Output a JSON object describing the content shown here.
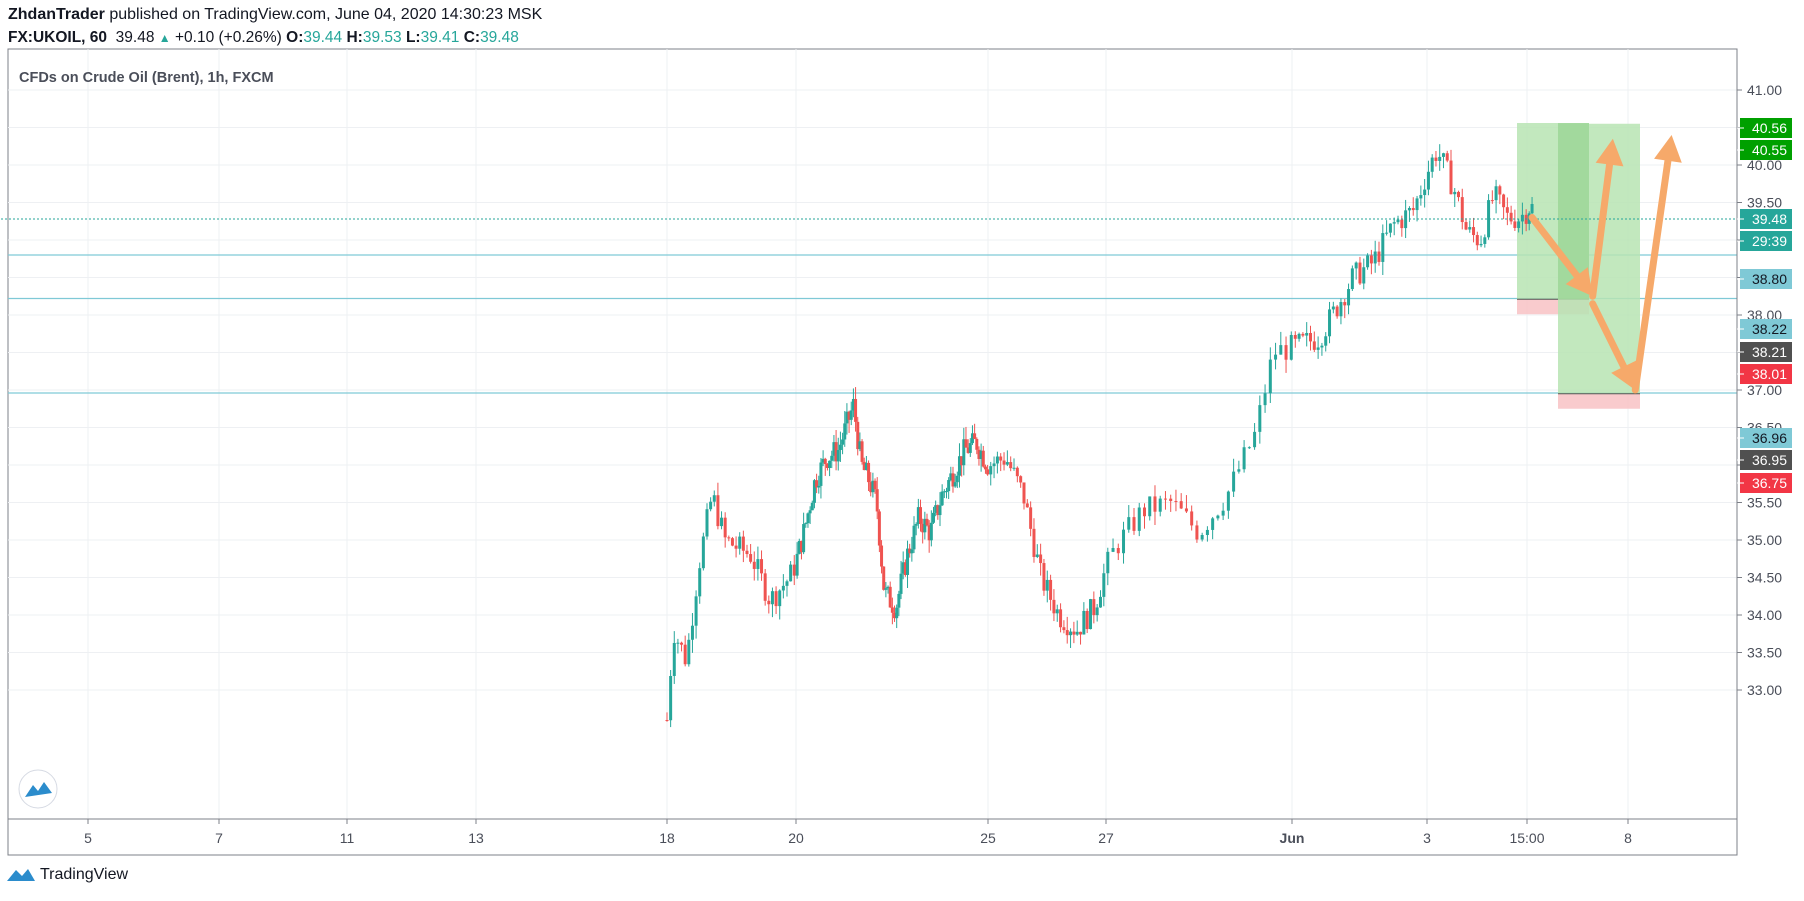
{
  "header": {
    "author": "ZhdanTrader",
    "published_text": " published on TradingView.com, June 04, 2020 14:30:23 MSK",
    "symbol": "FX:UKOIL, 60",
    "last": "39.48",
    "change": "+0.10 (+0.26%)",
    "o_label": "O:",
    "o_value": "39.44",
    "h_label": "H:",
    "h_value": "39.53",
    "l_label": "L:",
    "l_value": "39.41",
    "c_label": "C:",
    "c_value": "39.48"
  },
  "footer": {
    "brand": "TradingView",
    "logo_icon": "tradingview-cloud-icon"
  },
  "colors": {
    "up": "#26a69a",
    "down": "#ef5350",
    "arrow": "#f6a96a",
    "target_fill": "#b7e4b3",
    "target_dark": "#8fd08a",
    "stop_fill": "#f8c5c8",
    "hline": "#7fc9d6",
    "grid": "#eef0f3"
  },
  "chart_data": {
    "type": "candlestick",
    "title": "CFDs on Crude Oil (Brent), 1h, FXCM",
    "x_tick_labels": [
      "5",
      "7",
      "11",
      "13",
      "18",
      "20",
      "25",
      "27",
      "Jun",
      "3",
      "15:00",
      "8"
    ],
    "y_ticks": [
      33.0,
      33.5,
      34.0,
      34.5,
      35.0,
      35.5,
      36.0,
      36.5,
      37.0,
      37.5,
      38.0,
      38.5,
      39.0,
      39.5,
      40.0,
      40.5,
      41.0
    ],
    "y_tick_labels": [
      "33.00",
      "33.50",
      "34.00",
      "34.50",
      "35.00",
      "35.50",
      "36.00",
      "36.50",
      "37.00",
      "37.50",
      "38.00",
      "38.50",
      "39.00",
      "39.50",
      "40.00",
      "40.50",
      "41.00"
    ],
    "ylim": [
      32.55,
      41.5
    ],
    "price_path": [
      [
        18.0,
        32.6
      ],
      [
        18.1,
        33.8
      ],
      [
        18.3,
        33.4
      ],
      [
        18.5,
        34.7
      ],
      [
        18.7,
        35.6
      ],
      [
        18.9,
        35.0
      ],
      [
        19.3,
        34.8
      ],
      [
        19.6,
        34.2
      ],
      [
        19.9,
        34.5
      ],
      [
        20.2,
        35.1
      ],
      [
        20.5,
        35.8
      ],
      [
        20.8,
        36.1
      ],
      [
        21.1,
        36.2
      ],
      [
        21.3,
        36.5
      ],
      [
        21.5,
        36.8
      ],
      [
        21.7,
        36.0
      ],
      [
        21.9,
        35.8
      ],
      [
        22.1,
        35.5
      ],
      [
        22.3,
        34.3
      ],
      [
        22.6,
        34.1
      ],
      [
        22.9,
        34.8
      ],
      [
        23.2,
        35.3
      ],
      [
        23.5,
        35.1
      ],
      [
        23.8,
        35.6
      ],
      [
        24.1,
        35.9
      ],
      [
        24.4,
        36.2
      ],
      [
        24.7,
        36.3
      ],
      [
        25.0,
        36.0
      ],
      [
        25.3,
        36.1
      ],
      [
        25.6,
        35.6
      ],
      [
        25.9,
        34.5
      ],
      [
        26.2,
        34.0
      ],
      [
        26.5,
        33.8
      ],
      [
        26.8,
        34.1
      ],
      [
        27.1,
        34.9
      ],
      [
        27.4,
        35.4
      ],
      [
        27.7,
        35.5
      ],
      [
        28.0,
        35.1
      ],
      [
        28.3,
        35.6
      ],
      [
        28.6,
        36.4
      ],
      [
        28.8,
        37.5
      ],
      [
        29.1,
        37.6
      ],
      [
        29.4,
        37.7
      ],
      [
        29.6,
        38.0
      ],
      [
        29.9,
        38.5
      ],
      [
        30.2,
        38.7
      ],
      [
        30.5,
        39.2
      ],
      [
        30.8,
        39.4
      ],
      [
        31.0,
        39.9
      ],
      [
        31.15,
        40.2
      ],
      [
        31.4,
        39.7
      ],
      [
        31.6,
        39.1
      ],
      [
        31.8,
        39.0
      ],
      [
        32.0,
        39.6
      ],
      [
        32.2,
        39.3
      ],
      [
        32.4,
        39.3
      ],
      [
        32.6,
        39.5
      ]
    ],
    "last_price": 39.48,
    "countdown": "29:39",
    "horizontal_lines": [
      38.8,
      38.22,
      36.96
    ],
    "price_labels": [
      {
        "value": 40.56,
        "text": "40.56",
        "kind": "target"
      },
      {
        "value": 40.55,
        "text": "40.55",
        "kind": "target"
      },
      {
        "value": 39.48,
        "text": "39.48",
        "kind": "last"
      },
      {
        "value": 39.39,
        "text": "29:39",
        "kind": "countdown"
      },
      {
        "value": 38.8,
        "text": "38.80",
        "kind": "line"
      },
      {
        "value": 38.22,
        "text": "38.22",
        "kind": "line"
      },
      {
        "value": 38.21,
        "text": "38.21",
        "kind": "entry"
      },
      {
        "value": 38.01,
        "text": "38.01",
        "kind": "stop"
      },
      {
        "value": 36.96,
        "text": "36.96",
        "kind": "line"
      },
      {
        "value": 36.95,
        "text": "36.95",
        "kind": "entry"
      },
      {
        "value": 36.75,
        "text": "36.75",
        "kind": "stop"
      }
    ],
    "positions": [
      {
        "entry": 38.21,
        "target": 40.56,
        "stop": 38.01
      },
      {
        "entry": 36.95,
        "target": 40.55,
        "stop": 36.75
      }
    ],
    "arrows": [
      {
        "from": [
          32.6,
          39.3
        ],
        "to": [
          33.8,
          38.25
        ]
      },
      {
        "from": [
          33.8,
          38.25
        ],
        "to": [
          34.2,
          40.35
        ]
      },
      {
        "from": [
          33.8,
          38.15
        ],
        "to": [
          34.6,
          37.0
        ]
      },
      {
        "from": [
          34.6,
          37.0
        ],
        "to": [
          35.1,
          40.4
        ]
      }
    ]
  }
}
